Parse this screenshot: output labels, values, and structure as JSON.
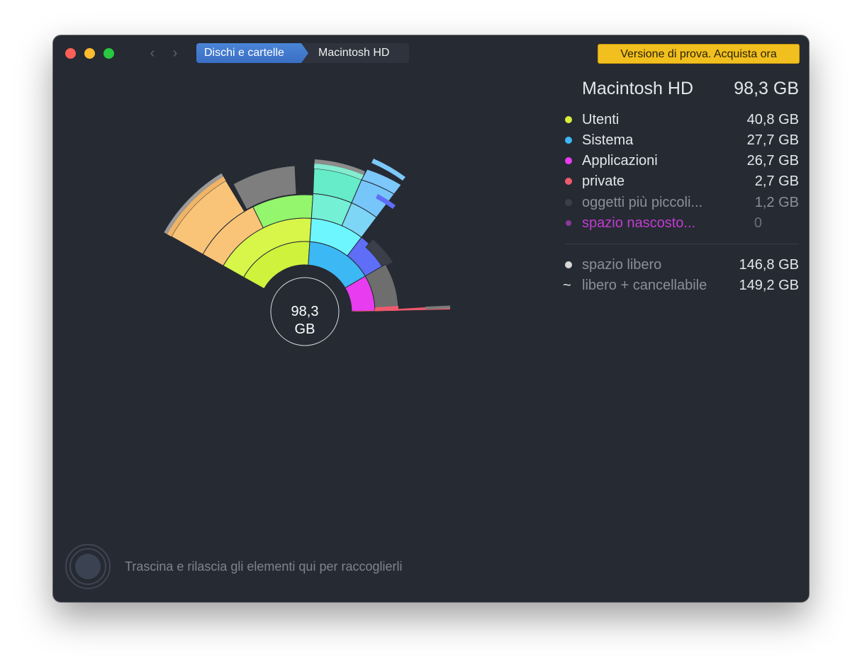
{
  "window": {
    "nav_back_icon": "chevron-left-icon",
    "nav_forward_icon": "chevron-right-icon"
  },
  "breadcrumbs": [
    "Dischi e cartelle",
    "Macintosh HD"
  ],
  "trial_button": "Versione di prova. Acquista ora",
  "panel": {
    "title": "Macintosh HD",
    "size": "98,3 GB",
    "items": [
      {
        "label": "Utenti",
        "value": "40,8 GB",
        "color": "#d8f03a"
      },
      {
        "label": "Sistema",
        "value": "27,7 GB",
        "color": "#3cb8f5"
      },
      {
        "label": "Applicazioni",
        "value": "26,7 GB",
        "color": "#e83cf0"
      },
      {
        "label": "private",
        "value": "2,7 GB",
        "color": "#f05a6e"
      },
      {
        "label": "oggetti più piccoli...",
        "value": "1,2 GB",
        "color": "#3a3f4a"
      },
      {
        "label": "spazio nascosto...",
        "value": "0",
        "color": "#b83cc8"
      }
    ],
    "free": {
      "label": "spazio libero",
      "value": "146,8 GB"
    },
    "purgeable": {
      "label": "libero + cancellabile",
      "value": "149,2 GB"
    }
  },
  "center": {
    "value": "98,3",
    "unit": "GB"
  },
  "drop_hint": "Trascina e rilascia gli elementi qui per raccoglierli"
}
